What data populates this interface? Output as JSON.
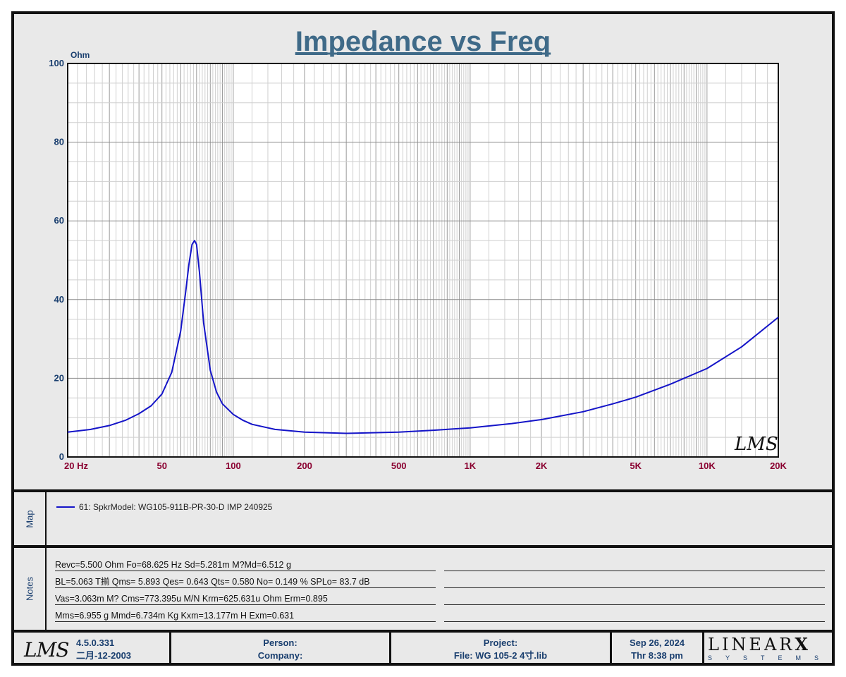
{
  "chart_data": {
    "type": "line",
    "title": "Impedance vs Freq",
    "ylabel": "Ohm",
    "xlabel": "",
    "x_scale": "log",
    "xlim": [
      20,
      20000
    ],
    "ylim": [
      0,
      100
    ],
    "grid": true,
    "y_ticks": [
      "0",
      "20",
      "40",
      "60",
      "80",
      "100"
    ],
    "y_tick_values": [
      0,
      20,
      40,
      60,
      80,
      100
    ],
    "x_ticks": [
      "20  Hz",
      "50",
      "100",
      "200",
      "500",
      "1K",
      "2K",
      "5K",
      "10K",
      "20K"
    ],
    "x_tick_values": [
      20,
      50,
      100,
      200,
      500,
      1000,
      2000,
      5000,
      10000,
      20000
    ],
    "series": [
      {
        "name": "61: SpkrModel: WG105-911B-PR-30-D IMP 240925",
        "color": "#1414c8",
        "x": [
          20,
          25,
          30,
          35,
          40,
          45,
          50,
          55,
          60,
          63,
          65,
          67,
          68.6,
          70,
          72,
          75,
          80,
          85,
          90,
          100,
          110,
          120,
          150,
          200,
          300,
          500,
          700,
          1000,
          1500,
          2000,
          3000,
          4000,
          5000,
          7000,
          10000,
          14000,
          20000
        ],
        "y": [
          6.3,
          7.0,
          8.0,
          9.3,
          11.0,
          13.0,
          16.0,
          21.5,
          32.0,
          42.0,
          49.0,
          54.0,
          55.0,
          54.0,
          47.0,
          34.0,
          22.0,
          16.5,
          13.5,
          10.8,
          9.3,
          8.3,
          7.0,
          6.3,
          6.0,
          6.3,
          6.8,
          7.4,
          8.5,
          9.5,
          11.5,
          13.5,
          15.2,
          18.5,
          22.5,
          28.0,
          35.5
        ]
      }
    ]
  },
  "map": {
    "label": "Map",
    "legend_entry": "61: SpkrModel: WG105-911B-PR-30-D IMP 240925",
    "legend_color": "#1414c8"
  },
  "notes": {
    "label": "Notes",
    "lines": [
      "Revc=5.500 Ohm  Fo=68.625 Hz  Sd=5.281m M?Md=6.512 g",
      "BL=5.063 T揃  Qms= 5.893  Qes= 0.643  Qts= 0.580  No= 0.149 %  SPLo= 83.7 dB",
      "Vas=3.063m M? Cms=773.395u M/N  Krm=625.631u Ohm  Erm=0.895",
      "Mms=6.955 g  Mmd=6.734m Kg  Kxm=13.177m H  Exm=0.631"
    ]
  },
  "footer": {
    "lms_logo": "LMS",
    "version": "4.5.0.331",
    "version_date": "二月-12-2003",
    "person_label": "Person:",
    "company_label": "Company:",
    "project_label": "Project:",
    "file_label": "File: WG 105-2 4寸.lib",
    "date": "Sep 26, 2024",
    "time": "Thr  8:38 pm",
    "brand_top": "LINEAR",
    "brand_x": "X",
    "brand_bottom": "SYSTEMS"
  },
  "watermark": "LMS",
  "colors": {
    "title": "#3f6a88",
    "axis_text": "#1a3f6f",
    "x_tick_text": "#8a0030",
    "curve": "#1414c8",
    "grid": "#b8b8b8",
    "panel_bg": "#e9e9e9"
  }
}
